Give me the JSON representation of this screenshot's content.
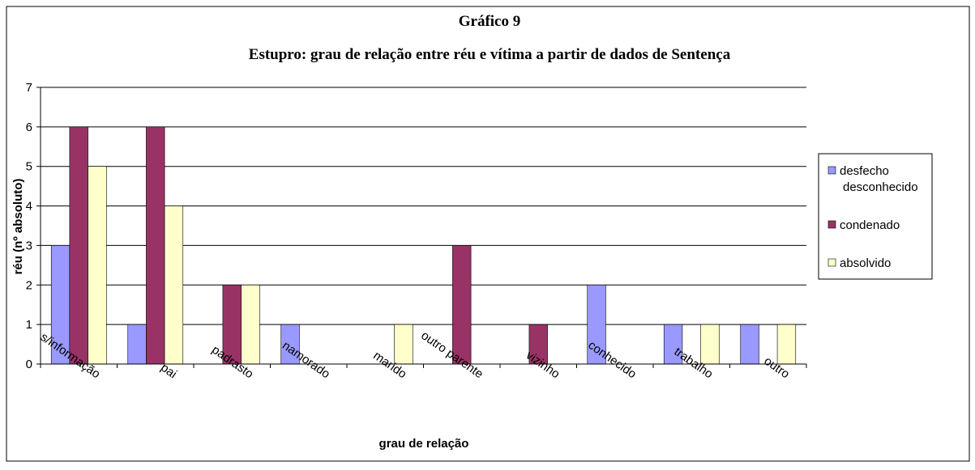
{
  "chart_data": {
    "type": "bar",
    "title": "Gráfico  9",
    "subtitle": "Estupro: grau de relação entre réu e vítima a partir de dados de Sentença",
    "x_label": "grau de relação",
    "y_label": "réu (nº absoluto)",
    "categories": [
      "s/informação",
      "pai",
      "padrasto",
      "namorado",
      "marido",
      "outro parente",
      "vizinho",
      "conhecido",
      "trabalho",
      "outro"
    ],
    "series": [
      {
        "name": "desfecho desconhecido",
        "color": "#9999ff",
        "values": [
          3,
          1,
          0,
          1,
          0,
          0,
          0,
          2,
          1,
          1
        ]
      },
      {
        "name": "condenado",
        "color": "#993366",
        "values": [
          6,
          6,
          2,
          0,
          0,
          3,
          1,
          0,
          0,
          0
        ]
      },
      {
        "name": "absolvido",
        "color": "#ffffcc",
        "values": [
          5,
          4,
          2,
          0,
          1,
          0,
          0,
          0,
          1,
          1
        ]
      }
    ],
    "ylim": [
      0,
      7
    ],
    "yticks": [
      0,
      1,
      2,
      3,
      4,
      5,
      6,
      7
    ],
    "grid": true,
    "legend": "right"
  }
}
